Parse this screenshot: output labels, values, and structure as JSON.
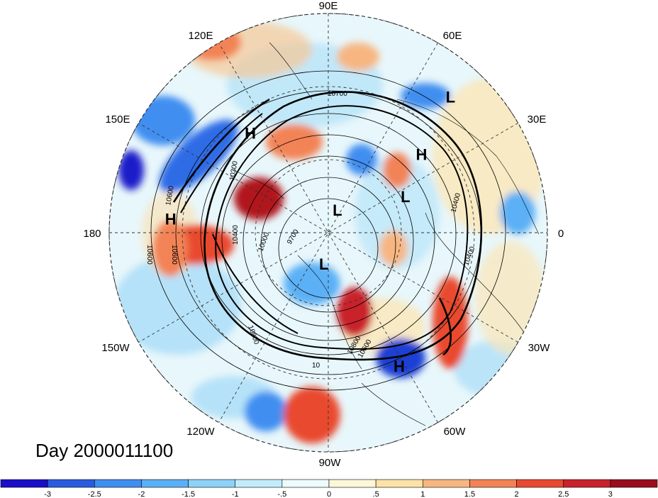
{
  "title": "Day 2000011100",
  "lon_labels": [
    "90E",
    "60E",
    "30E",
    "0",
    "30W",
    "60W",
    "90W",
    "120W",
    "150W",
    "180",
    "150E",
    "120E"
  ],
  "systems": [
    {
      "type": "H",
      "label": "H",
      "lon": 128,
      "lat": 38
    },
    {
      "type": "H",
      "label": "H",
      "lon": 175,
      "lat": 25
    },
    {
      "type": "H",
      "label": "H",
      "lon": 40,
      "lat": 40
    },
    {
      "type": "L",
      "label": "L",
      "lon": 48,
      "lat": 15
    },
    {
      "type": "L",
      "label": "L",
      "lon": 25,
      "lat": 55
    },
    {
      "type": "L",
      "label": "L",
      "lon": 68,
      "lat": 80
    },
    {
      "type": "L",
      "label": "L",
      "lon": -98,
      "lat": 77
    },
    {
      "type": "H",
      "label": "H",
      "lon": -62,
      "lat": 28
    }
  ],
  "contour_labels": [
    "10700",
    "10600",
    "10600",
    "10600",
    "10300",
    "10400",
    "10000",
    "9700",
    "10400",
    "10800",
    "10400",
    "10600",
    "10800",
    "10"
  ],
  "colorbar": {
    "levels": [
      "-3",
      "-2.5",
      "-2",
      "-1.5",
      "-1",
      "-.5",
      "0",
      ".5",
      "1",
      "1.5",
      "2",
      "2.5",
      "3"
    ],
    "colors": [
      "#1a0fc7",
      "#2a5bdf",
      "#3f8ef0",
      "#5bb0f5",
      "#8dd2f8",
      "#c2ecfb",
      "#eefbfd",
      "#fdf7d8",
      "#fbe2a6",
      "#f7b681",
      "#f28356",
      "#e9492f",
      "#c9222a",
      "#9a0d1d"
    ]
  }
}
